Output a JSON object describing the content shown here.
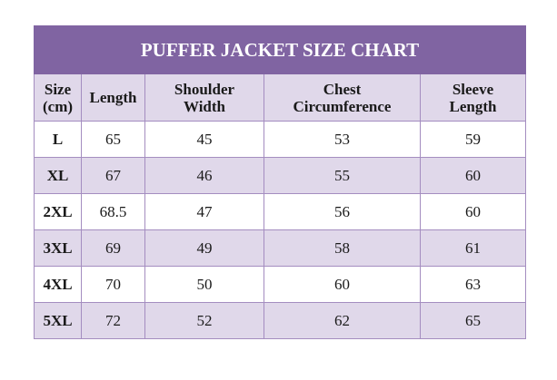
{
  "title": "PUFFER JACKET SIZE CHART",
  "headers": [
    "Size (cm)",
    "Length",
    "Shoulder Width",
    "Chest Circumference",
    "Sleeve Length"
  ],
  "rows": [
    [
      "L",
      "65",
      "45",
      "53",
      "59"
    ],
    [
      "XL",
      "67",
      "46",
      "55",
      "60"
    ],
    [
      "2XL",
      "68.5",
      "47",
      "56",
      "60"
    ],
    [
      "3XL",
      "69",
      "49",
      "58",
      "61"
    ],
    [
      "4XL",
      "70",
      "50",
      "60",
      "63"
    ],
    [
      "5XL",
      "72",
      "52",
      "62",
      "65"
    ]
  ],
  "colors": {
    "title_bg": "#8064a2",
    "header_bg": "#e0d8ea",
    "border": "#a48dc0"
  }
}
